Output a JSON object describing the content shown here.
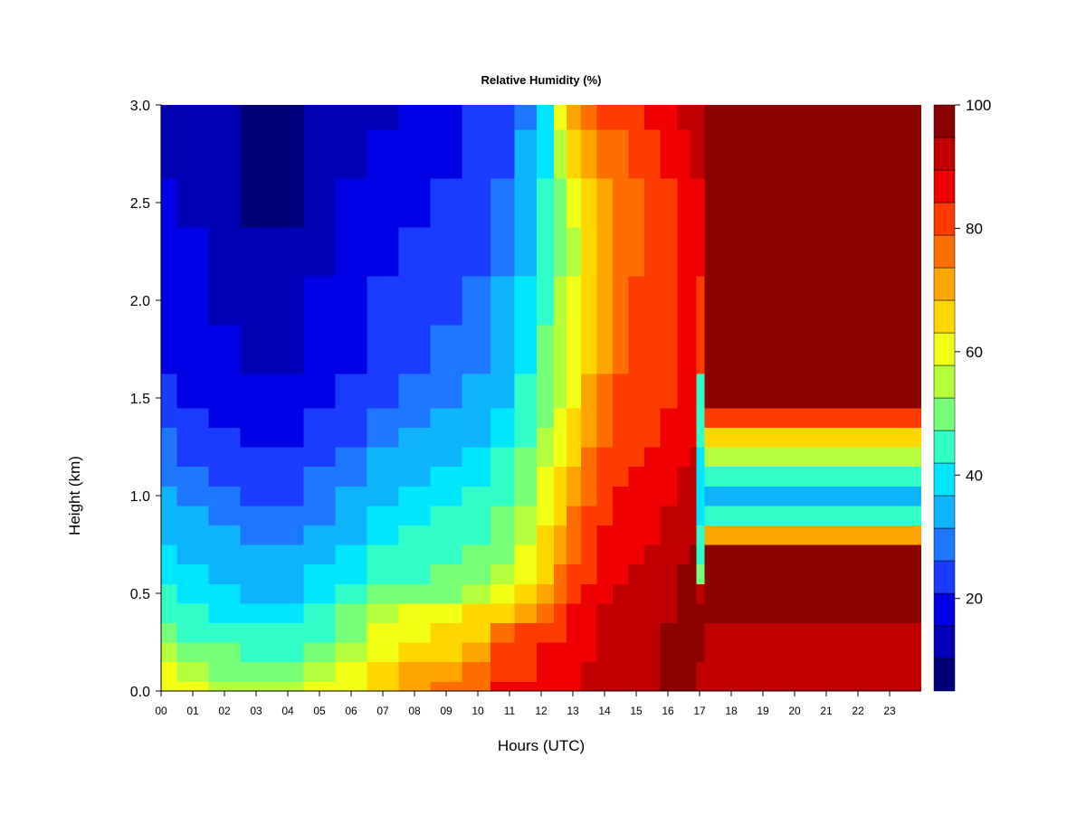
{
  "chart_data": {
    "type": "heatmap",
    "title": "Relative Humidity (%)",
    "xlabel": "Hours (UTC)",
    "ylabel": "Height (km)",
    "xlim": [
      0,
      24
    ],
    "ylim": [
      0.0,
      3.0
    ],
    "x_ticks": [
      "00",
      "01",
      "02",
      "03",
      "04",
      "05",
      "06",
      "07",
      "08",
      "09",
      "10",
      "11",
      "12",
      "13",
      "14",
      "15",
      "16",
      "17",
      "18",
      "19",
      "20",
      "21",
      "22",
      "23"
    ],
    "y_ticks": [
      "0.0",
      "0.5",
      "1.0",
      "1.5",
      "2.0",
      "2.5",
      "3.0"
    ],
    "colorbar": {
      "min": 5,
      "max": 100,
      "tick_values": [
        20,
        40,
        60,
        80,
        100
      ],
      "tick_labels": [
        "20",
        "40",
        "60",
        "80",
        "100"
      ],
      "level_colors": [
        "#00007a",
        "#0000b4",
        "#0000e6",
        "#1a3cff",
        "#1e78ff",
        "#0fb4ff",
        "#00e6ff",
        "#32ffc8",
        "#78ff78",
        "#b4ff3c",
        "#f0ff14",
        "#ffd700",
        "#ffa500",
        "#ff6e00",
        "#ff3c00",
        "#f00000",
        "#c00000",
        "#8b0000"
      ]
    },
    "heights_km": [
      0.0,
      0.1,
      0.2,
      0.3,
      0.4,
      0.5,
      0.6,
      0.7,
      0.8,
      0.9,
      1.0,
      1.1,
      1.2,
      1.3,
      1.4,
      1.5,
      1.75,
      2.0,
      2.25,
      2.5,
      2.75,
      3.0
    ],
    "hours_utc": [
      0.0,
      1.0,
      2.0,
      3.0,
      4.0,
      5.0,
      6.0,
      7.0,
      8.0,
      9.0,
      10.0,
      10.8,
      11.5,
      12.2,
      12.6,
      13.0,
      13.5,
      14.0,
      14.5,
      15.0,
      15.5,
      16.0,
      16.6,
      16.8,
      17.0,
      17.3,
      18.0,
      19.0,
      20.0,
      21.0,
      22.0,
      23.0,
      23.9
    ],
    "rh_percent": [
      [
        62,
        58,
        56,
        55,
        55,
        58,
        62,
        66,
        72,
        74,
        75,
        85,
        85,
        86,
        88,
        88,
        90,
        91,
        92,
        92,
        93,
        95,
        96,
        96,
        92,
        90,
        92,
        92,
        92,
        92,
        92,
        92,
        92
      ],
      [
        58,
        55,
        52,
        50,
        50,
        55,
        60,
        65,
        70,
        72,
        75,
        84,
        84,
        86,
        87,
        88,
        90,
        91,
        92,
        93,
        93,
        95,
        96,
        96,
        94,
        90,
        93,
        93,
        93,
        93,
        93,
        93,
        93
      ],
      [
        55,
        52,
        48,
        46,
        46,
        52,
        56,
        62,
        66,
        68,
        72,
        82,
        83,
        85,
        86,
        88,
        89,
        91,
        92,
        93,
        94,
        95,
        96,
        96,
        95,
        92,
        94,
        94,
        94,
        94,
        94,
        94,
        94
      ],
      [
        50,
        46,
        44,
        42,
        43,
        47,
        52,
        58,
        62,
        64,
        68,
        78,
        80,
        82,
        84,
        86,
        88,
        90,
        91,
        92,
        93,
        95,
        96,
        96,
        95,
        93,
        93,
        93,
        93,
        93,
        93,
        93,
        93
      ],
      [
        45,
        42,
        40,
        38,
        38,
        43,
        48,
        53,
        58,
        62,
        65,
        68,
        70,
        78,
        82,
        85,
        88,
        90,
        91,
        92,
        93,
        94,
        95,
        96,
        96,
        96,
        97,
        97,
        97,
        97,
        97,
        97,
        97
      ],
      [
        42,
        40,
        38,
        36,
        36,
        40,
        44,
        48,
        50,
        52,
        55,
        60,
        64,
        72,
        78,
        82,
        86,
        89,
        90,
        91,
        92,
        93,
        95,
        96,
        90,
        97,
        97,
        97,
        97,
        97,
        97,
        97,
        97
      ],
      [
        40,
        38,
        36,
        34,
        34,
        37,
        40,
        44,
        46,
        48,
        50,
        54,
        60,
        68,
        74,
        79,
        84,
        87,
        89,
        90,
        91,
        93,
        95,
        96,
        50,
        97,
        97,
        97,
        97,
        97,
        97,
        97,
        97
      ],
      [
        38,
        36,
        34,
        32,
        32,
        35,
        38,
        42,
        44,
        46,
        48,
        52,
        58,
        66,
        72,
        76,
        82,
        86,
        88,
        89,
        90,
        92,
        94,
        95,
        45,
        96,
        96,
        96,
        96,
        96,
        96,
        96,
        96
      ],
      [
        36,
        34,
        32,
        30,
        30,
        33,
        36,
        40,
        42,
        44,
        46,
        50,
        56,
        64,
        70,
        75,
        80,
        85,
        87,
        88,
        89,
        91,
        93,
        94,
        42,
        70,
        70,
        70,
        70,
        70,
        70,
        70,
        70
      ],
      [
        34,
        32,
        30,
        28,
        28,
        31,
        34,
        38,
        40,
        42,
        44,
        48,
        54,
        62,
        68,
        74,
        79,
        84,
        86,
        87,
        88,
        90,
        92,
        93,
        40,
        46,
        46,
        46,
        46,
        46,
        46,
        46,
        46
      ],
      [
        33,
        30,
        28,
        26,
        26,
        29,
        32,
        36,
        38,
        40,
        42,
        46,
        52,
        60,
        66,
        72,
        78,
        83,
        85,
        86,
        87,
        89,
        91,
        92,
        38,
        36,
        36,
        36,
        36,
        36,
        36,
        36,
        36
      ],
      [
        31,
        28,
        26,
        24,
        24,
        27,
        30,
        34,
        36,
        38,
        40,
        44,
        50,
        58,
        64,
        70,
        77,
        82,
        84,
        85,
        86,
        88,
        90,
        91,
        38,
        44,
        44,
        44,
        44,
        44,
        44,
        44,
        44
      ],
      [
        30,
        26,
        24,
        22,
        22,
        25,
        28,
        32,
        34,
        36,
        38,
        42,
        48,
        56,
        62,
        68,
        75,
        80,
        83,
        84,
        85,
        87,
        89,
        90,
        40,
        56,
        56,
        56,
        56,
        56,
        56,
        56,
        56
      ],
      [
        28,
        24,
        22,
        20,
        20,
        23,
        26,
        30,
        32,
        34,
        36,
        40,
        46,
        54,
        60,
        66,
        73,
        78,
        82,
        83,
        84,
        86,
        88,
        89,
        42,
        66,
        66,
        66,
        66,
        66,
        66,
        66,
        66
      ],
      [
        25,
        22,
        20,
        18,
        18,
        21,
        24,
        28,
        30,
        32,
        34,
        38,
        44,
        52,
        58,
        64,
        71,
        76,
        80,
        82,
        83,
        85,
        87,
        88,
        44,
        84,
        84,
        84,
        84,
        84,
        84,
        84,
        84
      ],
      [
        22,
        20,
        18,
        16,
        16,
        19,
        22,
        26,
        28,
        30,
        32,
        36,
        42,
        50,
        56,
        62,
        69,
        75,
        79,
        81,
        82,
        84,
        86,
        87,
        46,
        97,
        97,
        97,
        97,
        97,
        97,
        97,
        97
      ],
      [
        20,
        18,
        16,
        14,
        14,
        17,
        20,
        24,
        26,
        28,
        30,
        34,
        40,
        48,
        55,
        60,
        67,
        73,
        78,
        80,
        81,
        83,
        86,
        87,
        80,
        97,
        97,
        97,
        97,
        97,
        97,
        97,
        97
      ],
      [
        18,
        17,
        15,
        12,
        12,
        16,
        19,
        22,
        24,
        26,
        28,
        32,
        38,
        46,
        54,
        58,
        66,
        72,
        77,
        79,
        80,
        82,
        86,
        87,
        82,
        97,
        97,
        97,
        97,
        97,
        97,
        97,
        97
      ],
      [
        17,
        16,
        14,
        11,
        11,
        15,
        18,
        20,
        22,
        24,
        26,
        30,
        36,
        44,
        52,
        56,
        64,
        70,
        76,
        78,
        80,
        82,
        86,
        87,
        86,
        97,
        97,
        97,
        97,
        97,
        97,
        97,
        97
      ],
      [
        16,
        15,
        13,
        10,
        10,
        14,
        17,
        18,
        20,
        22,
        24,
        28,
        34,
        42,
        50,
        60,
        66,
        72,
        76,
        78,
        80,
        83,
        87,
        88,
        88,
        97,
        97,
        97,
        97,
        97,
        97,
        97,
        97
      ],
      [
        15,
        14,
        12,
        8,
        9,
        13,
        15,
        16,
        18,
        20,
        22,
        26,
        32,
        40,
        56,
        66,
        70,
        74,
        78,
        80,
        82,
        85,
        88,
        90,
        90,
        97,
        97,
        97,
        97,
        97,
        97,
        97,
        97
      ],
      [
        15,
        13,
        12,
        8,
        9,
        12,
        14,
        15,
        17,
        19,
        21,
        25,
        30,
        40,
        62,
        72,
        76,
        80,
        82,
        84,
        86,
        88,
        90,
        92,
        92,
        97,
        97,
        97,
        97,
        97,
        97,
        97,
        97
      ]
    ]
  }
}
